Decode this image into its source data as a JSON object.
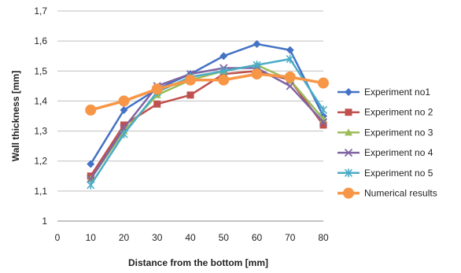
{
  "chart_data": {
    "type": "line",
    "title": "",
    "xlabel": "Distance  from the bottom [mm]",
    "ylabel": "Wall thickness [mm]",
    "x": [
      0,
      10,
      20,
      30,
      40,
      50,
      60,
      70,
      80
    ],
    "x_tick_labels": [
      "0",
      "10",
      "20",
      "30",
      "40",
      "50",
      "60",
      "70",
      "80"
    ],
    "y_tick_labels": [
      "1",
      "1,1",
      "1,2",
      "1,3",
      "1,4",
      "1,5",
      "1,6",
      "1,7"
    ],
    "xlim": [
      0,
      80
    ],
    "ylim": [
      1,
      1.7
    ],
    "grid": "horizontal",
    "legend_position": "right",
    "series": [
      {
        "name": "Experiment no1",
        "color": "#4472C4",
        "marker": "diamond",
        "x": [
          10,
          20,
          30,
          40,
          50,
          60,
          70,
          80
        ],
        "values": [
          1.19,
          1.37,
          1.44,
          1.49,
          1.55,
          1.59,
          1.57,
          1.35
        ]
      },
      {
        "name": "Experiment no 2",
        "color": "#C0504D",
        "marker": "square",
        "x": [
          10,
          20,
          30,
          40,
          50,
          60,
          70,
          80
        ],
        "values": [
          1.15,
          1.32,
          1.39,
          1.42,
          1.49,
          1.5,
          1.47,
          1.32
        ]
      },
      {
        "name": "Experiment no 3",
        "color": "#9BBB59",
        "marker": "triangle",
        "x": [
          10,
          20,
          30,
          40,
          50,
          60,
          70,
          80
        ],
        "values": [
          1.14,
          1.3,
          1.42,
          1.47,
          1.5,
          1.52,
          1.47,
          1.34
        ]
      },
      {
        "name": "Experiment no 4",
        "color": "#8064A2",
        "marker": "x",
        "x": [
          10,
          20,
          30,
          40,
          50,
          60,
          70,
          80
        ],
        "values": [
          1.14,
          1.31,
          1.45,
          1.49,
          1.51,
          1.51,
          1.45,
          1.33
        ]
      },
      {
        "name": "Experiment no 5",
        "color": "#4BACC6",
        "marker": "star",
        "x": [
          10,
          20,
          30,
          40,
          50,
          60,
          70,
          80
        ],
        "values": [
          1.12,
          1.29,
          1.43,
          1.48,
          1.5,
          1.52,
          1.54,
          1.37
        ]
      },
      {
        "name": "Numerical results",
        "color": "#F79646",
        "marker": "circle",
        "x": [
          10,
          20,
          30,
          40,
          50,
          60,
          70,
          80
        ],
        "values": [
          1.37,
          1.4,
          1.44,
          1.47,
          1.47,
          1.49,
          1.48,
          1.46
        ]
      }
    ]
  }
}
